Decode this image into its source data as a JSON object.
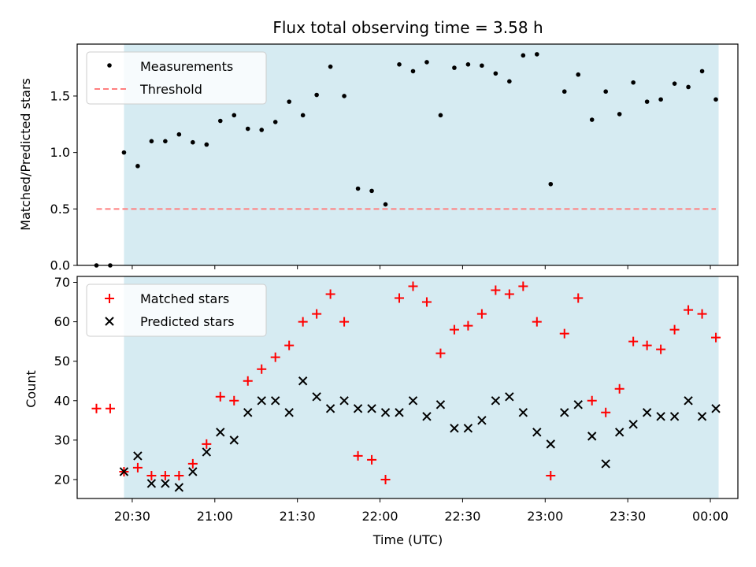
{
  "colors": {
    "background": "#ffffff",
    "shaded_region": "#add8e6",
    "measurements": "#000000",
    "threshold": "#ff7f7f",
    "matched": "#ff0000",
    "predicted": "#000000"
  },
  "chart_data": [
    {
      "type": "scatter",
      "title": "Flux total observing time = 3.58 h",
      "xlabel": "",
      "ylabel": "Matched/Predicted stars",
      "ylim": [
        0,
        1.96
      ],
      "yticks": [
        0.0,
        0.5,
        1.0,
        1.5
      ],
      "ytick_labels": [
        "0.0",
        "0.5",
        "1.0",
        "1.5"
      ],
      "xlim": [
        "2024-01-01T20:10",
        "2024-01-02T00:10"
      ],
      "xticks": [
        "2024-01-01T20:30",
        "2024-01-01T21:00",
        "2024-01-01T21:30",
        "2024-01-01T22:00",
        "2024-01-01T22:30",
        "2024-01-01T23:00",
        "2024-01-01T23:30",
        "2024-01-02T00:00"
      ],
      "grid": false,
      "legend_position": "top-left",
      "shaded_span": [
        "2024-01-01T20:27",
        "2024-01-02T00:03"
      ],
      "series": [
        {
          "name": "Measurements",
          "marker": "dot",
          "x": [
            "2024-01-01T20:17",
            "2024-01-01T20:22",
            "2024-01-01T20:27",
            "2024-01-01T20:32",
            "2024-01-01T20:37",
            "2024-01-01T20:42",
            "2024-01-01T20:47",
            "2024-01-01T20:52",
            "2024-01-01T20:57",
            "2024-01-01T21:02",
            "2024-01-01T21:07",
            "2024-01-01T21:12",
            "2024-01-01T21:17",
            "2024-01-01T21:22",
            "2024-01-01T21:27",
            "2024-01-01T21:32",
            "2024-01-01T21:37",
            "2024-01-01T21:42",
            "2024-01-01T21:47",
            "2024-01-01T21:52",
            "2024-01-01T21:57",
            "2024-01-01T22:02",
            "2024-01-01T22:07",
            "2024-01-01T22:12",
            "2024-01-01T22:17",
            "2024-01-01T22:22",
            "2024-01-01T22:27",
            "2024-01-01T22:32",
            "2024-01-01T22:37",
            "2024-01-01T22:42",
            "2024-01-01T22:47",
            "2024-01-01T22:52",
            "2024-01-01T22:57",
            "2024-01-01T23:02",
            "2024-01-01T23:07",
            "2024-01-01T23:12",
            "2024-01-01T23:17",
            "2024-01-01T23:22",
            "2024-01-01T23:27",
            "2024-01-01T23:32",
            "2024-01-01T23:37",
            "2024-01-01T23:42",
            "2024-01-01T23:47",
            "2024-01-01T23:52",
            "2024-01-01T23:57",
            "2024-01-02T00:02"
          ],
          "y": [
            0.0,
            0.0,
            1.0,
            0.88,
            1.1,
            1.1,
            1.16,
            1.09,
            1.07,
            1.28,
            1.33,
            1.21,
            1.2,
            1.27,
            1.45,
            1.33,
            1.51,
            1.76,
            1.5,
            0.68,
            0.66,
            0.54,
            1.78,
            1.72,
            1.8,
            1.33,
            1.75,
            1.78,
            1.77,
            1.7,
            1.63,
            1.86,
            1.87,
            0.72,
            1.54,
            1.69,
            1.29,
            1.54,
            1.34,
            1.62,
            1.45,
            1.47,
            1.61,
            1.58,
            1.72,
            1.47
          ]
        },
        {
          "name": "Threshold",
          "style": "dashed-line",
          "x": [
            "2024-01-01T20:17",
            "2024-01-02T00:02"
          ],
          "y": [
            0.5,
            0.5
          ]
        }
      ]
    },
    {
      "type": "scatter",
      "title": "",
      "xlabel": "Time (UTC)",
      "ylabel": "Count",
      "ylim": [
        15.2,
        71.5
      ],
      "yticks": [
        20,
        30,
        40,
        50,
        60,
        70
      ],
      "ytick_labels": [
        "20",
        "30",
        "40",
        "50",
        "60",
        "70"
      ],
      "xlim": [
        "2024-01-01T20:10",
        "2024-01-02T00:10"
      ],
      "xticks": [
        "2024-01-01T20:30",
        "2024-01-01T21:00",
        "2024-01-01T21:30",
        "2024-01-01T22:00",
        "2024-01-01T22:30",
        "2024-01-01T23:00",
        "2024-01-01T23:30",
        "2024-01-02T00:00"
      ],
      "xtick_labels": [
        "20:30",
        "21:00",
        "21:30",
        "22:00",
        "22:30",
        "23:00",
        "23:30",
        "00:00"
      ],
      "grid": false,
      "legend_position": "top-left",
      "shaded_span": [
        "2024-01-01T20:27",
        "2024-01-02T00:03"
      ],
      "series": [
        {
          "name": "Matched stars",
          "marker": "plus",
          "x": [
            "2024-01-01T20:17",
            "2024-01-01T20:22",
            "2024-01-01T20:27",
            "2024-01-01T20:32",
            "2024-01-01T20:37",
            "2024-01-01T20:42",
            "2024-01-01T20:47",
            "2024-01-01T20:52",
            "2024-01-01T20:57",
            "2024-01-01T21:02",
            "2024-01-01T21:07",
            "2024-01-01T21:12",
            "2024-01-01T21:17",
            "2024-01-01T21:22",
            "2024-01-01T21:27",
            "2024-01-01T21:32",
            "2024-01-01T21:37",
            "2024-01-01T21:42",
            "2024-01-01T21:47",
            "2024-01-01T21:52",
            "2024-01-01T21:57",
            "2024-01-01T22:02",
            "2024-01-01T22:07",
            "2024-01-01T22:12",
            "2024-01-01T22:17",
            "2024-01-01T22:22",
            "2024-01-01T22:27",
            "2024-01-01T22:32",
            "2024-01-01T22:37",
            "2024-01-01T22:42",
            "2024-01-01T22:47",
            "2024-01-01T22:52",
            "2024-01-01T22:57",
            "2024-01-01T23:02",
            "2024-01-01T23:07",
            "2024-01-01T23:12",
            "2024-01-01T23:17",
            "2024-01-01T23:22",
            "2024-01-01T23:27",
            "2024-01-01T23:32",
            "2024-01-01T23:37",
            "2024-01-01T23:42",
            "2024-01-01T23:47",
            "2024-01-01T23:52",
            "2024-01-01T23:57",
            "2024-01-02T00:02"
          ],
          "y": [
            38,
            38,
            22,
            23,
            21,
            21,
            21,
            24,
            29,
            41,
            40,
            45,
            48,
            51,
            54,
            60,
            62,
            67,
            60,
            26,
            25,
            20,
            66,
            69,
            65,
            52,
            58,
            59,
            62,
            68,
            67,
            69,
            60,
            21,
            57,
            66,
            40,
            37,
            43,
            55,
            54,
            53,
            58,
            63,
            62,
            56
          ]
        },
        {
          "name": "Predicted stars",
          "marker": "x",
          "x": [
            "2024-01-01T20:27",
            "2024-01-01T20:32",
            "2024-01-01T20:37",
            "2024-01-01T20:42",
            "2024-01-01T20:47",
            "2024-01-01T20:52",
            "2024-01-01T20:57",
            "2024-01-01T21:02",
            "2024-01-01T21:07",
            "2024-01-01T21:12",
            "2024-01-01T21:17",
            "2024-01-01T21:22",
            "2024-01-01T21:27",
            "2024-01-01T21:32",
            "2024-01-01T21:37",
            "2024-01-01T21:42",
            "2024-01-01T21:47",
            "2024-01-01T21:52",
            "2024-01-01T21:57",
            "2024-01-01T22:02",
            "2024-01-01T22:07",
            "2024-01-01T22:12",
            "2024-01-01T22:17",
            "2024-01-01T22:22",
            "2024-01-01T22:27",
            "2024-01-01T22:32",
            "2024-01-01T22:37",
            "2024-01-01T22:42",
            "2024-01-01T22:47",
            "2024-01-01T22:52",
            "2024-01-01T22:57",
            "2024-01-01T23:02",
            "2024-01-01T23:07",
            "2024-01-01T23:12",
            "2024-01-01T23:17",
            "2024-01-01T23:22",
            "2024-01-01T23:27",
            "2024-01-01T23:32",
            "2024-01-01T23:37",
            "2024-01-01T23:42",
            "2024-01-01T23:47",
            "2024-01-01T23:52",
            "2024-01-01T23:57",
            "2024-01-02T00:02"
          ],
          "y": [
            22,
            26,
            19,
            19,
            18,
            22,
            27,
            32,
            30,
            37,
            40,
            40,
            37,
            45,
            41,
            38,
            40,
            38,
            38,
            37,
            37,
            40,
            36,
            39,
            33,
            33,
            35,
            40,
            41,
            37,
            32,
            29,
            37,
            39,
            31,
            24,
            32,
            34,
            37,
            36,
            36,
            40,
            36,
            38
          ]
        }
      ]
    }
  ]
}
